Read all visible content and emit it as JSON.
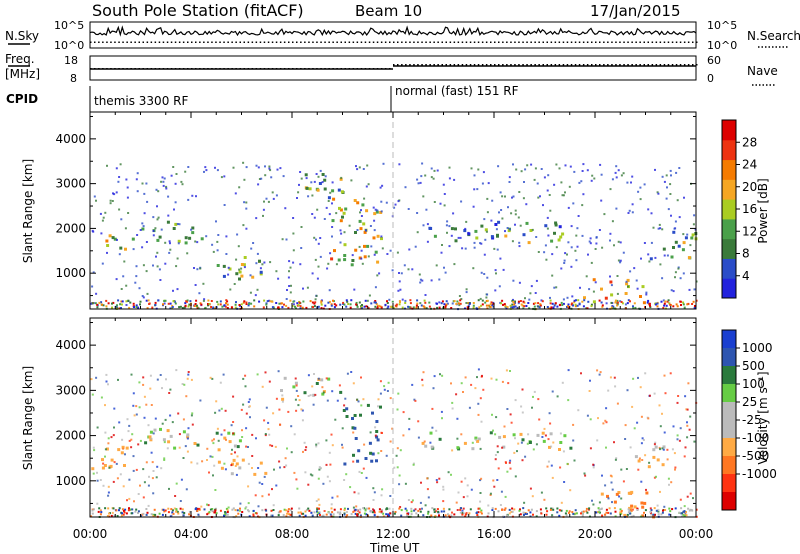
{
  "header": {
    "title": "South Pole Station (fitACF)",
    "beam": "Beam 10",
    "date": "17/Jan/2015"
  },
  "top_panel": {
    "left_label": "N.Sky",
    "right_label": "N.Search",
    "left_ticks": [
      "10^5",
      "10^0"
    ],
    "right_ticks": [
      "10^5",
      "10^0"
    ]
  },
  "freq_panel": {
    "left_label_1": "Freq.",
    "left_label_2": "[MHz]",
    "right_label": "Nave",
    "left_ticks": [
      "18",
      "8"
    ],
    "right_ticks": [
      "60",
      "0"
    ]
  },
  "cpid": {
    "label": "CPID",
    "mode_1": "themis 3300 RF",
    "mode_2": "normal (fast) 151 RF",
    "switch_time": "12:00"
  },
  "colors": {
    "power": [
      "#2222dd",
      "#2a4cc8",
      "#3a7a3a",
      "#4aa04a",
      "#aacc22",
      "#f5a623",
      "#f57b00",
      "#ee3311",
      "#dd0000"
    ],
    "velocity": [
      "#1a3fd0",
      "#2e55b0",
      "#2a7a3c",
      "#66cc44",
      "#bbbbbb",
      "#bbbbbb",
      "#ffaa44",
      "#ff7722",
      "#ff3311",
      "#dd0000"
    ]
  },
  "chart_data": [
    {
      "type": "heatmap",
      "name": "Power",
      "xlabel": "",
      "ylabel": "Slant Range [km]",
      "x_ticks": [
        "00:00",
        "04:00",
        "08:00",
        "12:00",
        "16:00",
        "20:00",
        "00:00"
      ],
      "y_ticks": [
        1000,
        2000,
        3000,
        4000
      ],
      "ylim": [
        200,
        4600
      ],
      "colorbar": {
        "label": "Power [dB]",
        "ticks": [
          4,
          8,
          12,
          16,
          20,
          24,
          28
        ],
        "range": [
          0,
          32
        ]
      },
      "regions": [
        {
          "t": [
            0.0,
            2.0
          ],
          "r": [
            1500,
            1900
          ],
          "level": 0.45
        },
        {
          "t": [
            2.0,
            4.5
          ],
          "r": [
            1700,
            2200
          ],
          "level": 0.35
        },
        {
          "t": [
            5.0,
            7.0
          ],
          "r": [
            900,
            1400
          ],
          "level": 0.4
        },
        {
          "t": [
            7.5,
            10.0
          ],
          "r": [
            2700,
            3300
          ],
          "level": 0.4
        },
        {
          "t": [
            9.5,
            11.5
          ],
          "r": [
            1200,
            2700
          ],
          "level": 0.55
        },
        {
          "t": [
            13.0,
            16.0
          ],
          "r": [
            1700,
            2100
          ],
          "level": 0.3
        },
        {
          "t": [
            16.0,
            19.0
          ],
          "r": [
            1700,
            2200
          ],
          "level": 0.35
        },
        {
          "t": [
            19.5,
            22.0
          ],
          "r": [
            300,
            900
          ],
          "level": 0.6
        },
        {
          "t": [
            22.0,
            24.0
          ],
          "r": [
            1300,
            2000
          ],
          "level": 0.35
        }
      ]
    },
    {
      "type": "heatmap",
      "name": "Velocity",
      "xlabel": "Time UT",
      "ylabel": "Slant Range [km]",
      "x_ticks": [
        "00:00",
        "04:00",
        "08:00",
        "12:00",
        "16:00",
        "20:00",
        "00:00"
      ],
      "y_ticks": [
        1000,
        2000,
        3000,
        4000
      ],
      "ylim": [
        200,
        4600
      ],
      "colorbar": {
        "label": "Velocity [m s⁻¹]",
        "ticks": [
          1000,
          500,
          100,
          25,
          -25,
          -100,
          -500,
          -1000
        ]
      },
      "regions": [
        {
          "t": [
            0.0,
            1.5
          ],
          "r": [
            1300,
            1900
          ],
          "vel": -300
        },
        {
          "t": [
            2.0,
            6.0
          ],
          "r": [
            1700,
            2200
          ],
          "vel": 0
        },
        {
          "t": [
            5.0,
            7.0
          ],
          "r": [
            1100,
            1500
          ],
          "vel": -200
        },
        {
          "t": [
            7.5,
            10.0
          ],
          "r": [
            2800,
            3300
          ],
          "vel": 0
        },
        {
          "t": [
            10.0,
            11.5
          ],
          "r": [
            1400,
            2800
          ],
          "vel": 600
        },
        {
          "t": [
            13.0,
            19.0
          ],
          "r": [
            1700,
            2100
          ],
          "vel": 0
        },
        {
          "t": [
            20.0,
            22.5
          ],
          "r": [
            200,
            800
          ],
          "vel": -600
        },
        {
          "t": [
            21.5,
            23.0
          ],
          "r": [
            1300,
            1800
          ],
          "vel": -150
        }
      ]
    }
  ]
}
